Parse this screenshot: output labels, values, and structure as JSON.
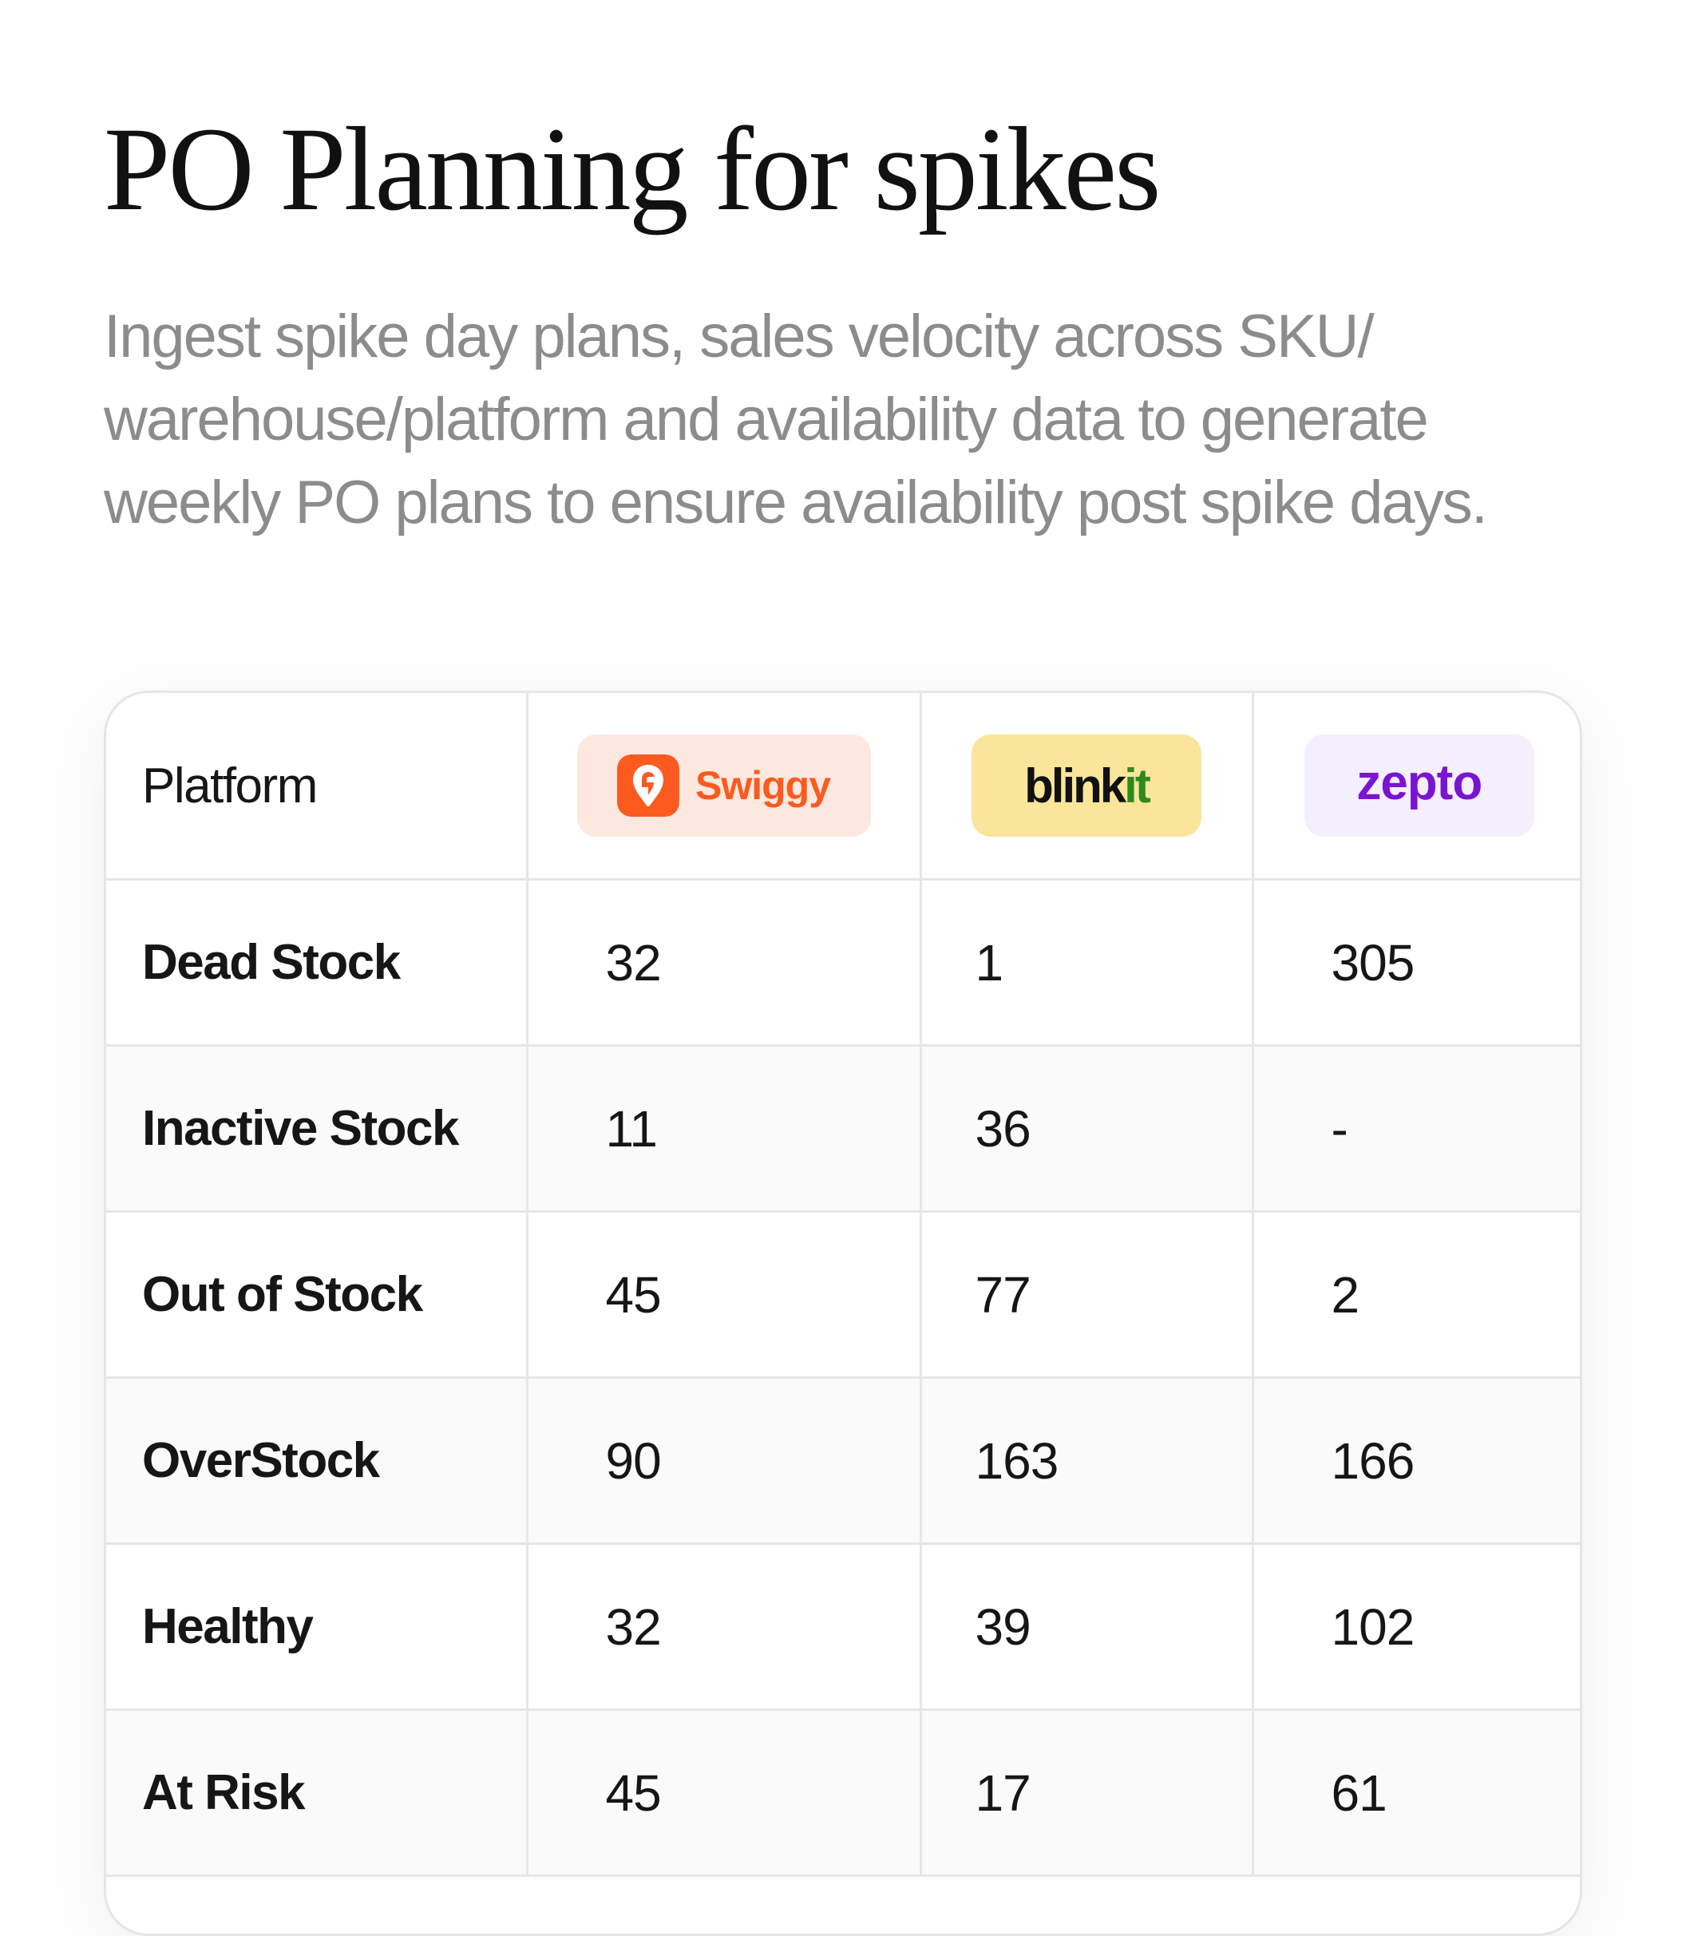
{
  "header": {
    "title": "PO Planning for spikes",
    "description": "Ingest spike day plans, sales velocity across SKU/ warehouse/platform and availability data to generate weekly PO plans to ensure availability post spike days."
  },
  "table": {
    "header_label": "Platform",
    "platforms": {
      "swiggy": {
        "name": "Swiggy",
        "color": "#FC5A1F",
        "badge_bg": "#FDE8DF"
      },
      "blinkit": {
        "name_a": "blink",
        "name_b": "it",
        "color": "#2E8A1F",
        "badge_bg": "#FBE59A"
      },
      "zepto": {
        "name": "zepto",
        "color": "#7A14D2",
        "badge_bg": "#F3EFFD"
      }
    },
    "rows": [
      {
        "label": "Dead Stock",
        "swiggy": "32",
        "blinkit": "1",
        "zepto": "305"
      },
      {
        "label": "Inactive Stock",
        "swiggy": "11",
        "blinkit": "36",
        "zepto": "-"
      },
      {
        "label": "Out of Stock",
        "swiggy": "45",
        "blinkit": "77",
        "zepto": "2"
      },
      {
        "label": "OverStock",
        "swiggy": "90",
        "blinkit": "163",
        "zepto": "166"
      },
      {
        "label": "Healthy",
        "swiggy": "32",
        "blinkit": "39",
        "zepto": "102"
      },
      {
        "label": "At Risk",
        "swiggy": "45",
        "blinkit": "17",
        "zepto": "61"
      }
    ]
  }
}
